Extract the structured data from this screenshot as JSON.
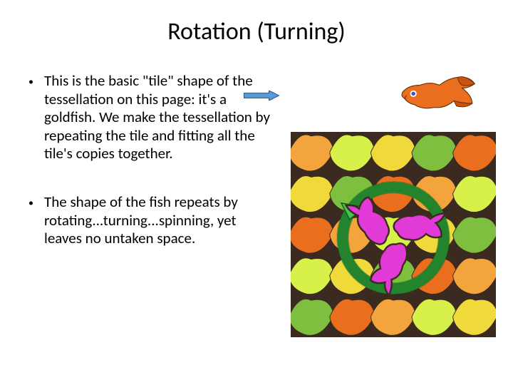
{
  "title": "Rotation (Turning)",
  "bullets": [
    "This is the basic \"tile\" shape of the tessellation on this page: it's a goldfish. We make the tessellation by repeating the tile and fitting all the tile's copies together.",
    "The shape of the fish repeats by rotating...turning...spinning, yet leaves no untaken space."
  ],
  "fish_color": "#e96f1f",
  "fish_eye": "#2e5db8",
  "arrow_fill": "#5b9bd5",
  "arrow_stroke": "#2e5b8a",
  "tessellation": {
    "bg_tiles": [
      "#f3a43c",
      "#d7f04a",
      "#f0d93a",
      "#7fbf3f",
      "#e96f1f",
      "#f0d93a",
      "#7fbf3f",
      "#e96f1f",
      "#f3a43c",
      "#d7f04a",
      "#e96f1f",
      "#f3a43c",
      "#d7f04a",
      "#f0d93a",
      "#7fbf3f",
      "#d7f04a",
      "#f0d93a",
      "#7fbf3f",
      "#e96f1f",
      "#f3a43c",
      "#7fbf3f",
      "#e96f1f",
      "#f3a43c",
      "#d7f04a",
      "#f0d93a"
    ],
    "border": "#3b2a1f",
    "center_fish": "#e23ad6",
    "ring": "#2e9b3a",
    "arrow_tip": "#45c24e"
  }
}
